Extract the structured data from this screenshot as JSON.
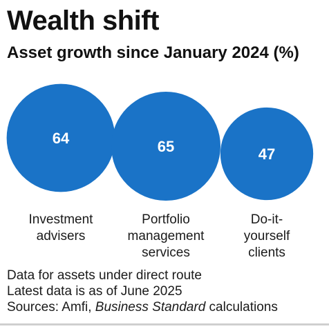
{
  "title": "Wealth shift",
  "subtitle": "Asset growth since January 2024 (%)",
  "chart_data": {
    "type": "bubble",
    "title": "Wealth shift",
    "subtitle": "Asset growth since January 2024 (%)",
    "categories": [
      [
        "Investment",
        "advisers"
      ],
      [
        "Portfolio",
        "management",
        "services"
      ],
      [
        "Do-it-",
        "yourself",
        "clients"
      ]
    ],
    "values": [
      64,
      65,
      47
    ],
    "color": "#1a73c7",
    "value_label_color": "#ffffff"
  },
  "notes": {
    "line1": "Data for assets under direct route",
    "line2": "Latest data is as of June 2025",
    "sources_prefix": "Sources: Amfi, ",
    "sources_italic": "Business Standard",
    "sources_suffix": " calculations"
  }
}
